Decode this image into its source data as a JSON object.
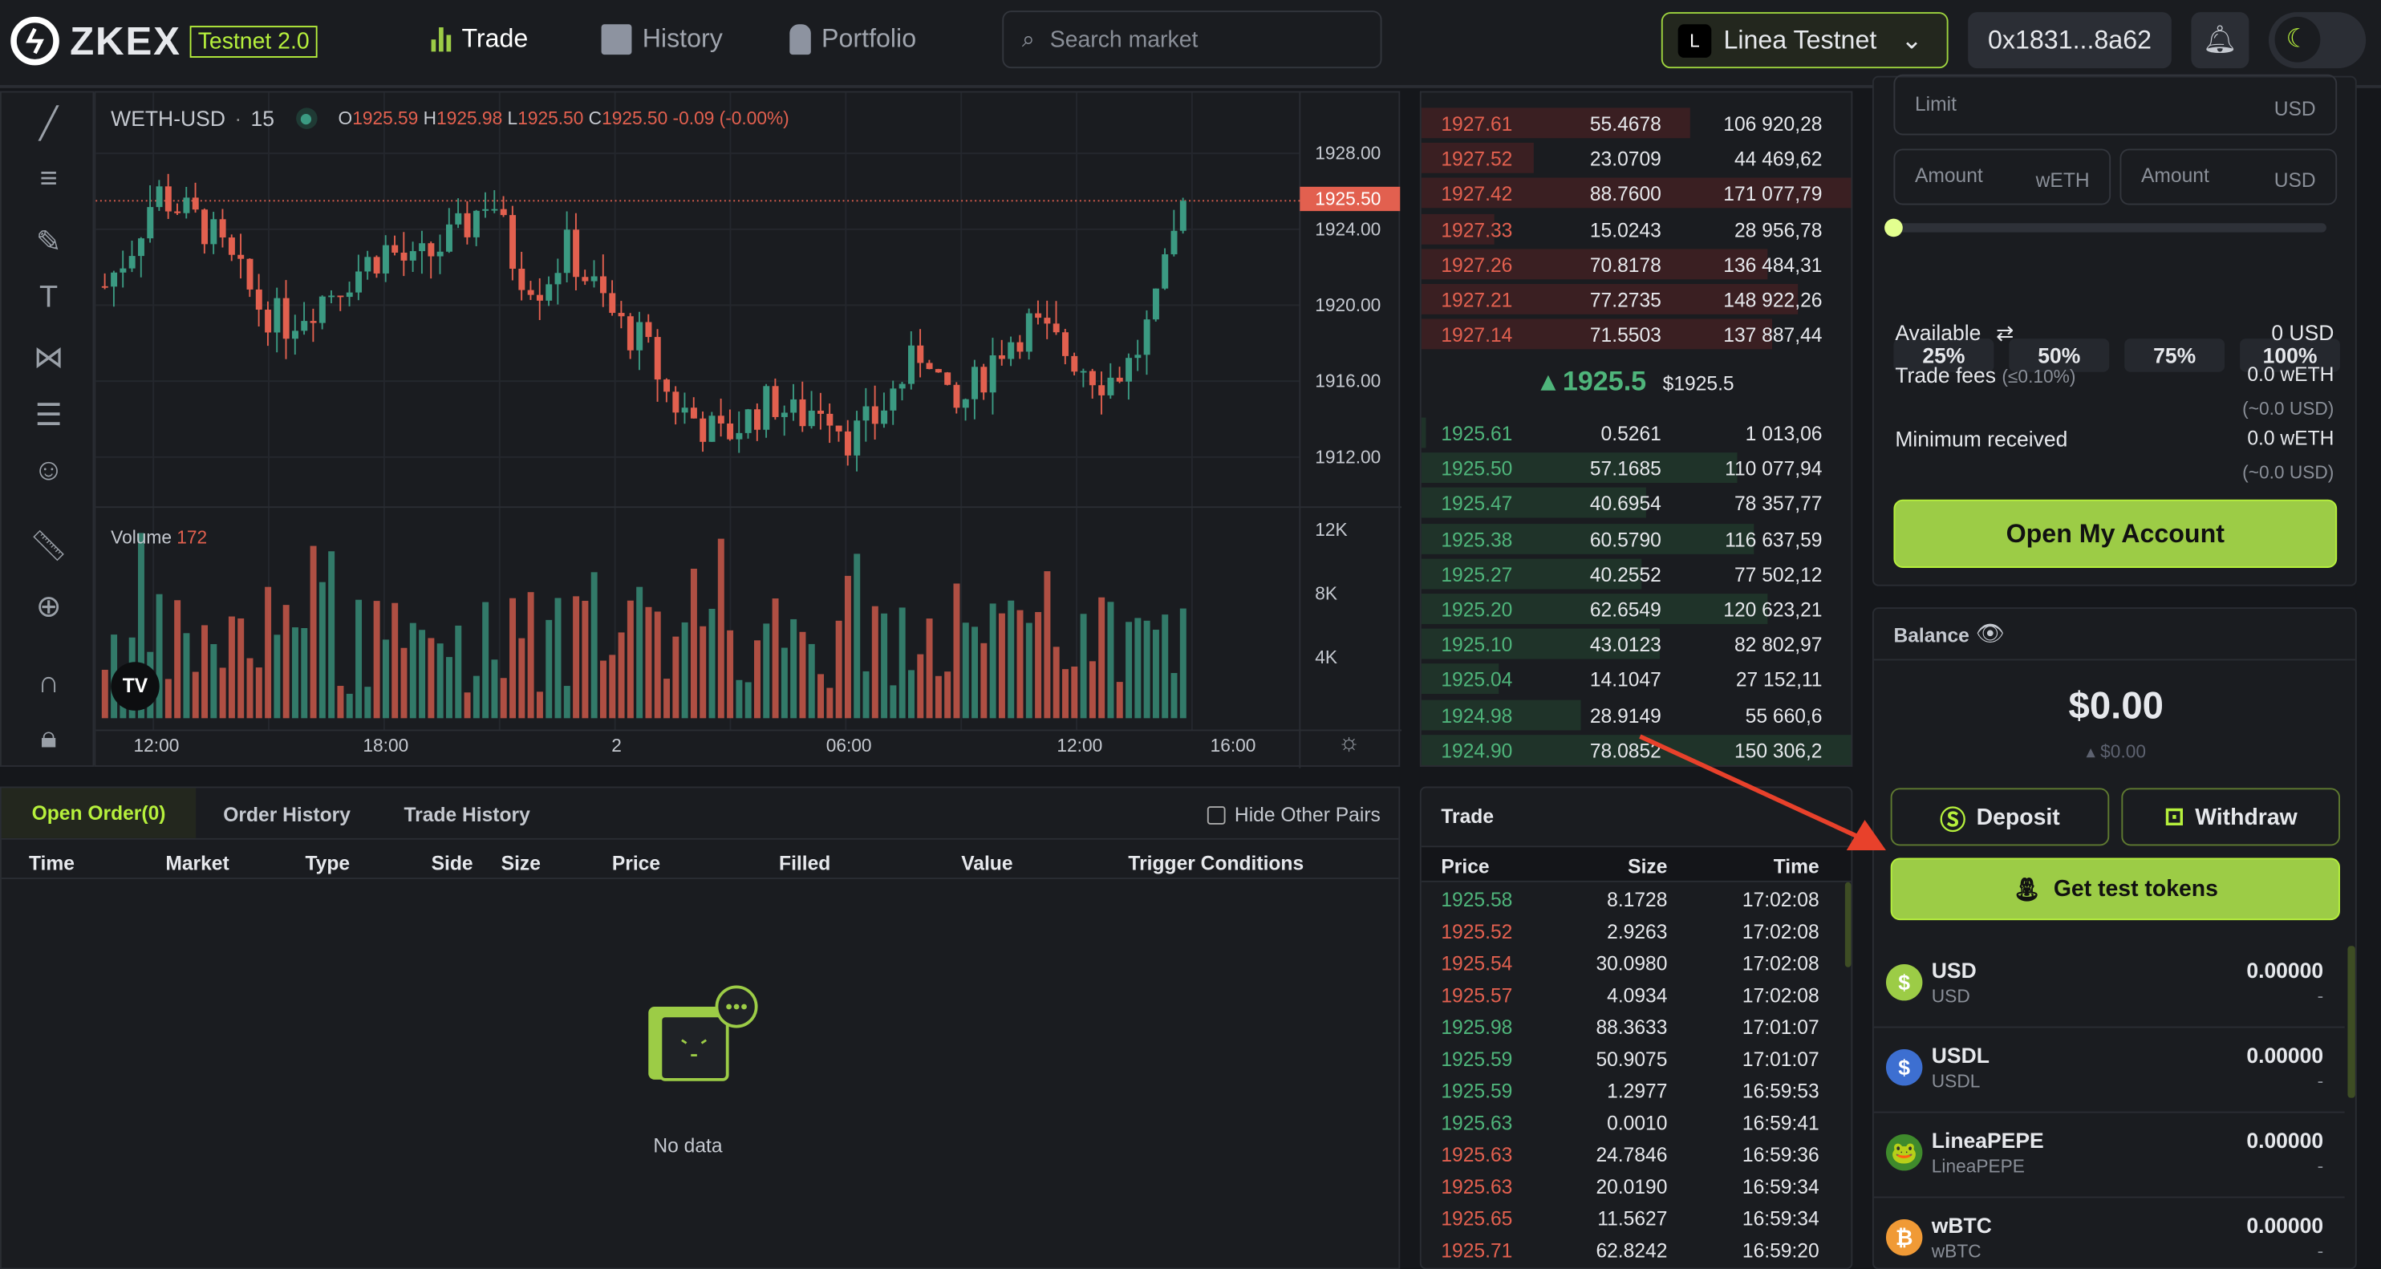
{
  "header": {
    "logo": "ZKEX",
    "badge": "Testnet 2.0",
    "nav": [
      "Trade",
      "History",
      "Portfolio"
    ],
    "search_placeholder": "Search market",
    "network": "Linea Testnet",
    "address": "0x1831...8a62"
  },
  "chart": {
    "symbol": "WETH-USD",
    "interval": "15",
    "ohlc": {
      "o_label": "O",
      "o": "1925.59",
      "h_label": "H",
      "h": "1925.98",
      "l_label": "L",
      "l": "1925.50",
      "c_label": "C",
      "c": "1925.50",
      "change": "-0.09 (-0.00%)"
    },
    "last_price_tag": "1925.50",
    "volume_label": "Volume",
    "volume_value": "172"
  },
  "chart_data": {
    "type": "candlestick",
    "price_ticks": [
      "1928.00",
      "1924.00",
      "1920.00",
      "1916.00",
      "1912.00"
    ],
    "volume_ticks": [
      "12K",
      "8K",
      "4K"
    ],
    "time_ticks": [
      "12:00",
      "18:00",
      "2",
      "06:00",
      "12:00",
      "16:00"
    ],
    "close_path": [
      1921,
      1923,
      1926,
      1925,
      1924,
      1922,
      1920,
      1919,
      1920,
      1921,
      1922,
      1923,
      1922,
      1923,
      1924,
      1926,
      1922,
      1921,
      1923,
      1921,
      1919,
      1918,
      1915,
      1914,
      1913,
      1914,
      1915,
      1914,
      1915,
      1913,
      1914,
      1916,
      1918,
      1914,
      1916,
      1918,
      1919,
      1918,
      1917,
      1916,
      1917,
      1920,
      1925.5
    ],
    "colors": {
      "up": "#3b9a82",
      "down": "#e2604f"
    }
  },
  "orderbook": {
    "asks": [
      [
        "1927.61",
        "55.4678",
        "106 920,28",
        0.62
      ],
      [
        "1927.52",
        "23.0709",
        "44 469,62",
        0.26
      ],
      [
        "1927.42",
        "88.7600",
        "171 077,79",
        1.0
      ],
      [
        "1927.33",
        "15.0243",
        "28 956,78",
        0.17
      ],
      [
        "1927.26",
        "70.8178",
        "136 484,31",
        0.8
      ],
      [
        "1927.21",
        "77.2735",
        "148 922,26",
        0.87
      ],
      [
        "1927.14",
        "71.5503",
        "137 887,44",
        0.81
      ]
    ],
    "mid_price": "1925.5",
    "mid_usd": "$1925.5",
    "bids": [
      [
        "1925.61",
        "0.5261",
        "1 013,06",
        0.01
      ],
      [
        "1925.50",
        "57.1685",
        "110 077,94",
        0.73
      ],
      [
        "1925.47",
        "40.6954",
        "78 357,77",
        0.52
      ],
      [
        "1925.38",
        "60.5790",
        "116 637,59",
        0.77
      ],
      [
        "1925.27",
        "40.2552",
        "77 502,12",
        0.51
      ],
      [
        "1925.20",
        "62.6549",
        "120 623,21",
        0.8
      ],
      [
        "1925.10",
        "43.0123",
        "82 802,97",
        0.55
      ],
      [
        "1925.04",
        "14.1047",
        "27 152,11",
        0.18
      ],
      [
        "1924.98",
        "28.9149",
        "55 660,6",
        0.37
      ],
      [
        "1924.90",
        "78.0852",
        "150 306,2",
        1.0
      ]
    ]
  },
  "orders": {
    "tabs": [
      "Open Order(0)",
      "Order History",
      "Trade History"
    ],
    "hide_label": "Hide Other Pairs",
    "columns": [
      "Time",
      "Market",
      "Type",
      "Side",
      "Size",
      "Price",
      "Filled",
      "Value",
      "Trigger Conditions"
    ],
    "empty": "No data"
  },
  "trades": {
    "title": "Trade",
    "columns": [
      "Price",
      "Size",
      "Time"
    ],
    "rows": [
      [
        "1925.58",
        "8.1728",
        "17:02:08",
        "buy"
      ],
      [
        "1925.52",
        "2.9263",
        "17:02:08",
        "sell"
      ],
      [
        "1925.54",
        "30.0980",
        "17:02:08",
        "sell"
      ],
      [
        "1925.57",
        "4.0934",
        "17:02:08",
        "sell"
      ],
      [
        "1925.98",
        "88.3633",
        "17:01:07",
        "buy"
      ],
      [
        "1925.59",
        "50.9075",
        "17:01:07",
        "buy"
      ],
      [
        "1925.59",
        "1.2977",
        "16:59:53",
        "buy"
      ],
      [
        "1925.63",
        "0.0010",
        "16:59:41",
        "buy"
      ],
      [
        "1925.63",
        "24.7846",
        "16:59:36",
        "sell"
      ],
      [
        "1925.63",
        "20.0190",
        "16:59:34",
        "sell"
      ],
      [
        "1925.65",
        "11.5627",
        "16:59:34",
        "sell"
      ],
      [
        "1925.71",
        "62.8242",
        "16:59:20",
        "sell"
      ]
    ]
  },
  "form": {
    "limit_label": "Limit",
    "limit_unit": "USD",
    "amount_label": "Amount",
    "amount_unit_base": "wETH",
    "amount_unit_quote": "USD",
    "slider_value": 0,
    "pct": [
      "25%",
      "50%",
      "75%",
      "100%"
    ],
    "available_label": "Available",
    "available_value": "0 USD",
    "fees_label": "Trade fees",
    "fees_rate": "(≤0.10%)",
    "fees_value": "0.0 wETH",
    "fees_usd": "(~0.0 USD)",
    "min_label": "Minimum received",
    "min_value": "0.0 wETH",
    "min_usd": "(~0.0 USD)",
    "submit": "Open My Account"
  },
  "balance": {
    "title": "Balance",
    "total": "$0.00",
    "change": "$0.00",
    "deposit": "Deposit",
    "withdraw": "Withdraw",
    "get_tokens": "Get test tokens",
    "assets": [
      {
        "name": "USD",
        "symbol": "USD",
        "amount": "0.00000",
        "usd": "-",
        "color": "#9ccc46",
        "glyph": "$"
      },
      {
        "name": "USDL",
        "symbol": "USDL",
        "amount": "0.00000",
        "usd": "-",
        "color": "#3d6fd1",
        "glyph": "$"
      },
      {
        "name": "LineaPEPE",
        "symbol": "LineaPEPE",
        "amount": "0.00000",
        "usd": "-",
        "color": "#3f8a2c",
        "glyph": "🐸"
      },
      {
        "name": "wBTC",
        "symbol": "wBTC",
        "amount": "0.00000",
        "usd": "-",
        "color": "#f09a36",
        "glyph": "₿"
      }
    ]
  }
}
